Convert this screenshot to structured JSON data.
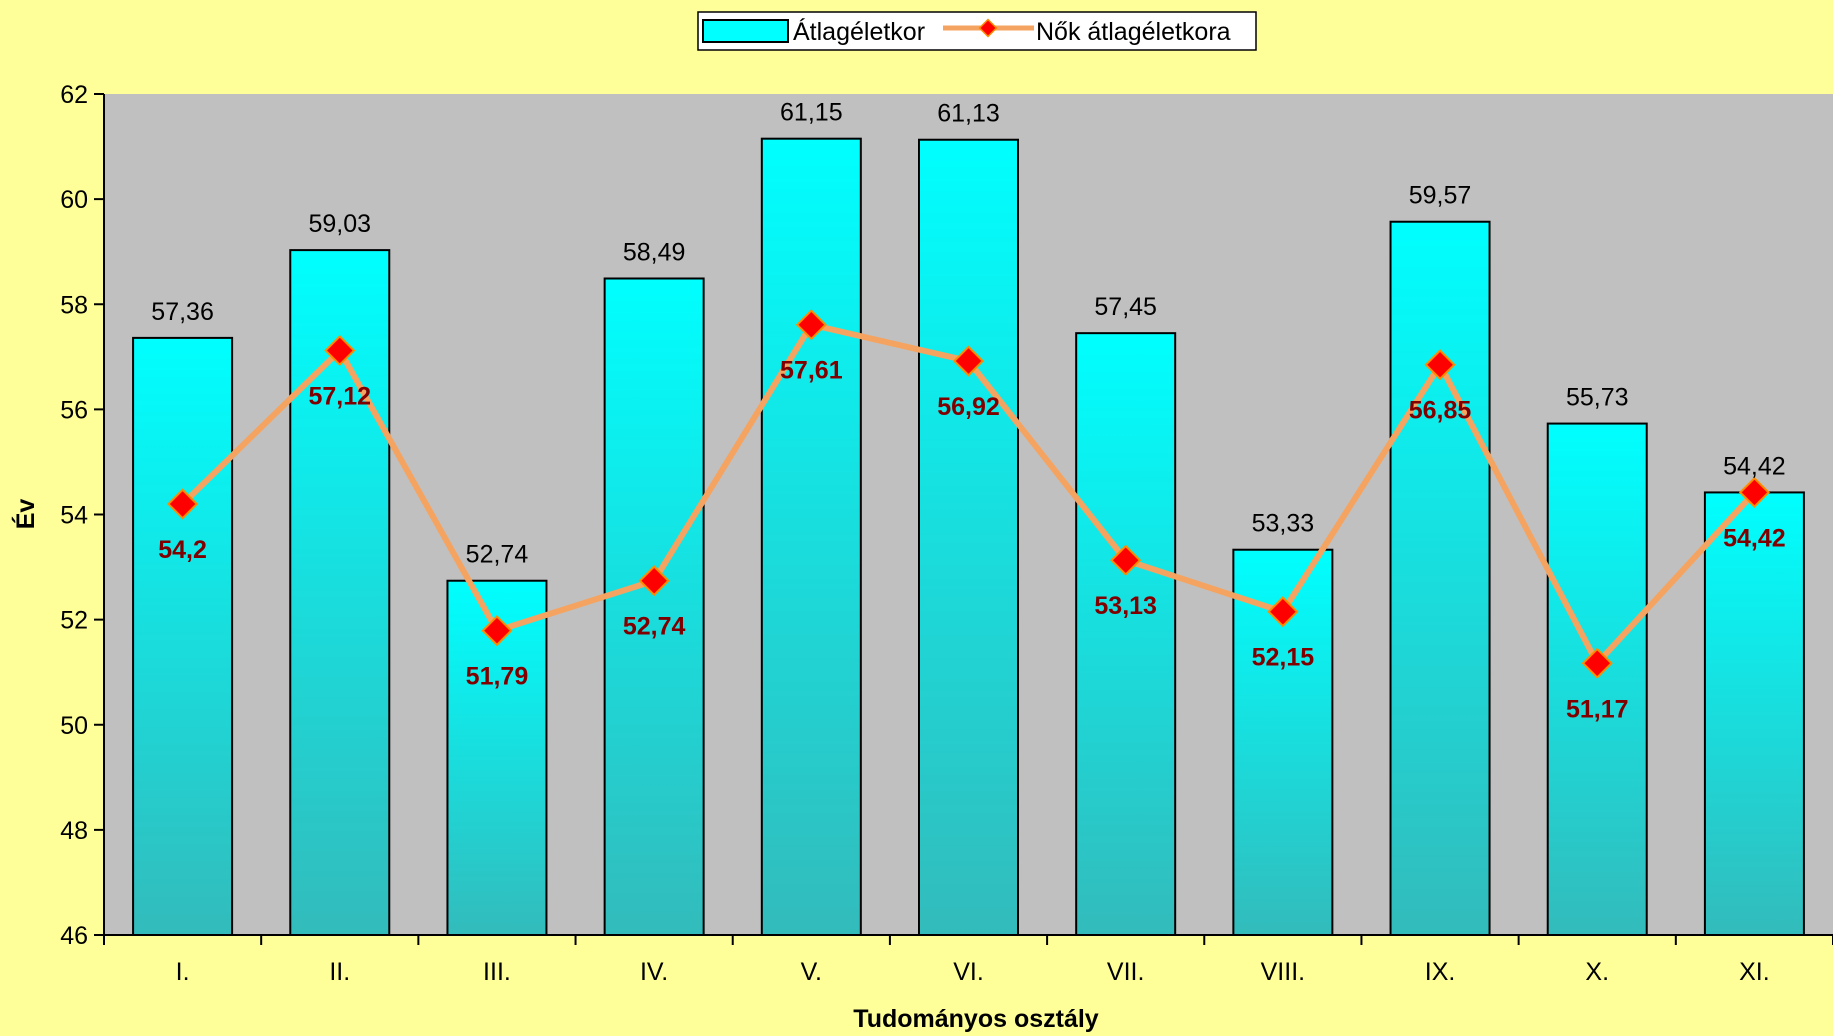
{
  "chart_data": {
    "type": "bar",
    "categories": [
      "I.",
      "II.",
      "III.",
      "IV.",
      "V.",
      "VI.",
      "VII.",
      "VIII.",
      "IX.",
      "X.",
      "XI."
    ],
    "series": [
      {
        "name": "Átlagéletkor",
        "kind": "bar",
        "values": [
          57.36,
          59.03,
          52.74,
          58.49,
          61.15,
          61.13,
          57.45,
          53.33,
          59.57,
          55.73,
          54.42
        ],
        "labels": [
          "57,36",
          "59,03",
          "52,74",
          "58,49",
          "61,15",
          "61,13",
          "57,45",
          "53,33",
          "59,57",
          "55,73",
          "54,42"
        ],
        "color": "#00ffff"
      },
      {
        "name": "Nők átlagéletkora",
        "kind": "line",
        "values": [
          54.2,
          57.12,
          51.79,
          52.74,
          57.61,
          56.92,
          53.13,
          52.15,
          56.85,
          51.17,
          54.42
        ],
        "labels": [
          "54,2",
          "57,12",
          "51,79",
          "52,74",
          "57,61",
          "56,92",
          "53,13",
          "52,15",
          "56,85",
          "51,17",
          "54,42"
        ],
        "color": "#f4a460",
        "marker_color": "#ff0000"
      }
    ],
    "xlabel": "Tudományos osztály",
    "ylabel": "Év",
    "ylim": [
      46,
      62
    ],
    "yticks": [
      46,
      48,
      50,
      52,
      54,
      56,
      58,
      60,
      62
    ],
    "grid": false,
    "legend": "top-center",
    "plot_background": "#c0c0c0",
    "page_background": "#ffff99"
  }
}
